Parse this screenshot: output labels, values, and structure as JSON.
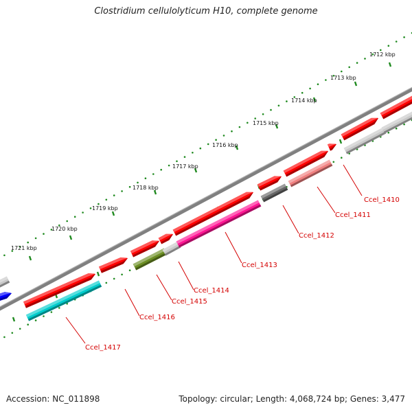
{
  "title": "Clostridium cellulolyticum H10, complete genome",
  "footer": {
    "accession": "Accession: NC_011898",
    "summary": "Topology: circular; Length: 4,068,724 bp; Genes: 3,477"
  },
  "colors": {
    "forward_gene": "#ff0000",
    "backbone": "#808080",
    "tick": "#1f8a1f",
    "label": "#d40000",
    "cyan": "#00cccc",
    "magenta": "#ff1493",
    "olive": "#6b8e23",
    "dark_gray": "#666666",
    "light_gray": "#c8c8c8",
    "pink": "#f08080",
    "blue": "#0000ff"
  },
  "scale_labels": [
    "1712 kbp",
    "1713 kbp",
    "1714 kbp",
    "1715 kbp",
    "1716 kbp",
    "1717 kbp",
    "1718 kbp",
    "1719 kbp",
    "1720 kbp",
    "1721 kbp"
  ],
  "gene_labels": [
    "Ccel_1410",
    "Ccel_1411",
    "Ccel_1412",
    "Ccel_1413",
    "Ccel_1414",
    "Ccel_1415",
    "Ccel_1416",
    "Ccel_1417"
  ]
}
